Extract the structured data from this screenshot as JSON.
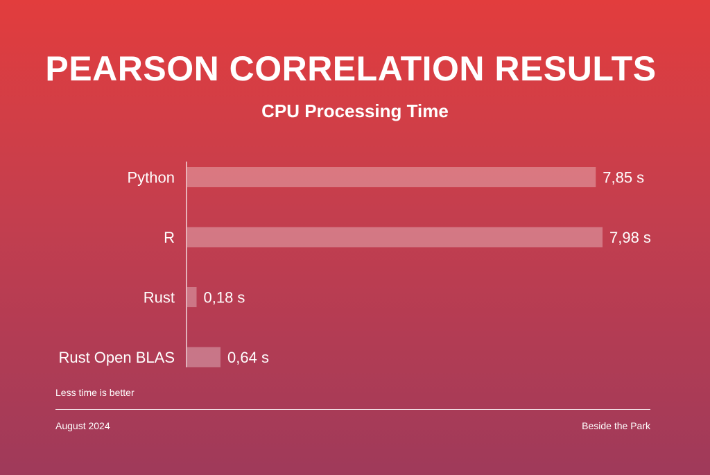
{
  "chart_data": {
    "type": "bar",
    "orientation": "horizontal",
    "title": "PEARSON CORRELATION RESULTS",
    "subtitle": "CPU Processing Time",
    "categories": [
      "Python",
      "R",
      "Rust",
      "Rust Open BLAS"
    ],
    "values": [
      7.85,
      7.98,
      0.18,
      0.64
    ],
    "value_labels": [
      "7,85 s",
      "7,98 s",
      "0,18 s",
      "0,64 s"
    ],
    "unit": "s",
    "xlim": [
      0,
      7.98
    ],
    "grid": false,
    "legend": "none",
    "bar_color": "#ffffff",
    "note": "Less time is better"
  },
  "footer": {
    "date": "August 2024",
    "brand": "Beside the Park"
  }
}
